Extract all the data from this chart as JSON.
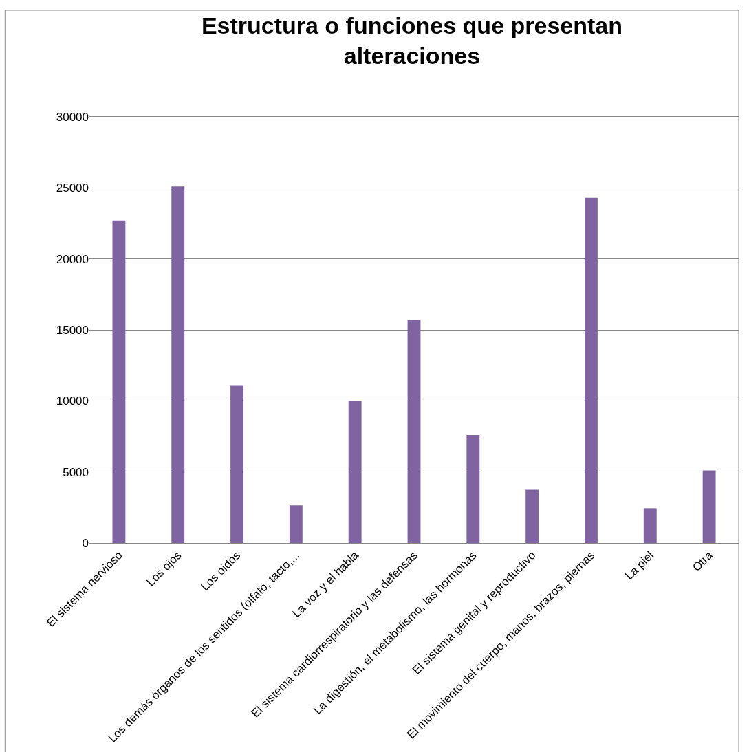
{
  "chart_data": {
    "type": "bar",
    "title": "Estructura o funciones que presentan alteraciones",
    "categories": [
      "El sistema nervioso",
      "Los ojos",
      "Los oidos",
      "Los demás órganos de los sentidos (olfato, tacto,...",
      "La voz y el habla",
      "El sistema cardiorrespiratorio y las defensas",
      "La digestión, el metabolismo, las hormonas",
      "El sistema genital y reproductivo",
      "El movimiento del cuerpo, manos, brazos, piernas",
      "La piel",
      "Otra"
    ],
    "values": [
      22700,
      25100,
      11100,
      2650,
      10000,
      15700,
      7600,
      3750,
      24300,
      2450,
      5100
    ],
    "color": "#8064a2",
    "ylim": [
      0,
      30000
    ],
    "yticks": [
      0,
      5000,
      10000,
      15000,
      20000,
      25000,
      30000
    ],
    "grid": "y"
  }
}
